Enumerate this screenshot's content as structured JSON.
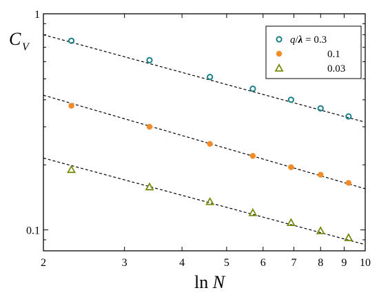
{
  "chart_data": {
    "type": "scatter",
    "x_scale": "log",
    "y_scale": "log",
    "xlim": [
      2,
      10
    ],
    "ylim": [
      0.08,
      1
    ],
    "x_ticks": [
      2,
      3,
      4,
      5,
      6,
      7,
      8,
      9,
      10
    ],
    "x_tick_labels": [
      "2",
      "3",
      "4",
      "5",
      "6",
      "7",
      "8",
      "9",
      "10"
    ],
    "y_ticks": [
      0.1,
      1
    ],
    "y_tick_labels": [
      "0.1",
      "1"
    ],
    "xlabel": {
      "main": "ln",
      "italic": "N"
    },
    "ylabel": {
      "main": "C",
      "sub": "V"
    },
    "legend": {
      "placement": "top-right",
      "header": {
        "italic_q": "q",
        "slash": "/",
        "lambda": "λ",
        "eq": " = "
      }
    },
    "grid": false,
    "fit_lines": "dashed black",
    "series": [
      {
        "name": "0.3",
        "marker": "open-circle",
        "color": "#1a7f87",
        "x": [
          2.3,
          3.4,
          4.6,
          5.7,
          6.9,
          8.0,
          9.2
        ],
        "y": [
          0.75,
          0.61,
          0.51,
          0.45,
          0.4,
          0.365,
          0.335
        ],
        "fit": {
          "x": [
            2,
            10
          ],
          "y": [
            0.8,
            0.315
          ]
        }
      },
      {
        "name": "0.1",
        "marker": "filled-circle",
        "color": "#f28c28",
        "x": [
          2.3,
          3.4,
          4.6,
          5.7,
          6.9,
          8.0,
          9.2
        ],
        "y": [
          0.375,
          0.3,
          0.25,
          0.22,
          0.195,
          0.18,
          0.165
        ],
        "fit": {
          "x": [
            2,
            10
          ],
          "y": [
            0.42,
            0.155
          ]
        }
      },
      {
        "name": "0.03",
        "marker": "open-triangle",
        "color": "#7a8a0f",
        "x": [
          2.3,
          3.4,
          4.6,
          5.7,
          6.9,
          8.0,
          9.2
        ],
        "y": [
          0.19,
          0.158,
          0.135,
          0.12,
          0.108,
          0.099,
          0.092
        ],
        "fit": {
          "x": [
            2,
            10
          ],
          "y": [
            0.215,
            0.0855
          ]
        }
      }
    ]
  }
}
